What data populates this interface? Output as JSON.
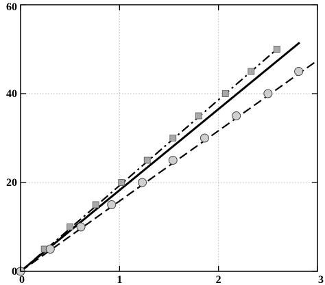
{
  "chart_data": {
    "type": "scatter",
    "xlim": [
      0,
      3
    ],
    "ylim": [
      0,
      60
    ],
    "x_ticks": [
      0,
      1,
      2,
      3
    ],
    "y_ticks": [
      0,
      20,
      40,
      60
    ],
    "x_tick_labels": [
      "0",
      "1",
      "2",
      "3"
    ],
    "y_tick_labels": [
      "0",
      "20",
      "40",
      "60"
    ],
    "grid": true,
    "title": "",
    "xlabel": "",
    "ylabel": "",
    "series": [
      {
        "marker": "square",
        "color": "#a8a8a8",
        "x": [
          0.0,
          0.24,
          0.5,
          0.76,
          1.02,
          1.28,
          1.54,
          1.8,
          2.07,
          2.33,
          2.59
        ],
        "y": [
          0,
          5,
          10,
          15,
          20,
          25,
          30,
          35,
          40,
          45,
          50
        ]
      },
      {
        "marker": "circle",
        "color": "#cfcfcf",
        "x": [
          0.0,
          0.3,
          0.61,
          0.92,
          1.23,
          1.54,
          1.86,
          2.18,
          2.5,
          2.81
        ],
        "y": [
          0,
          5,
          10,
          15,
          20,
          25,
          30,
          35,
          40,
          45
        ]
      }
    ],
    "lines": [
      {
        "style": "dash-dot",
        "x": [
          0,
          2.6
        ],
        "y": [
          0,
          50.2
        ]
      },
      {
        "style": "solid",
        "x": [
          0,
          2.82
        ],
        "y": [
          0,
          51.5
        ]
      },
      {
        "style": "dashed",
        "x": [
          0,
          2.97
        ],
        "y": [
          0,
          47.0
        ]
      }
    ]
  }
}
